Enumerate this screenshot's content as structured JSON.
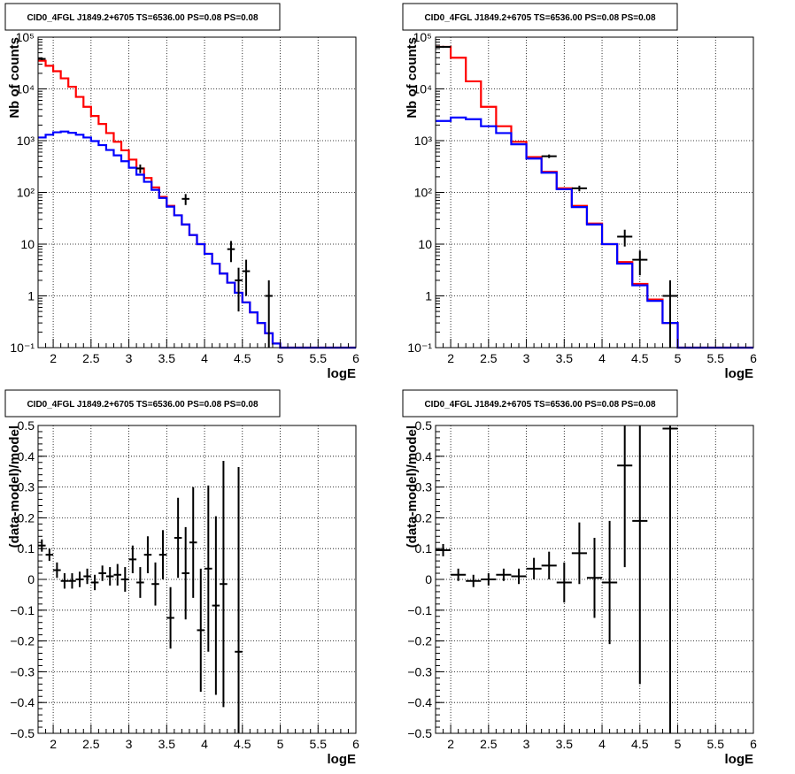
{
  "chart_data": [
    {
      "type": "line",
      "title": "CID0_4FGL J1849.2+6705 TS=6536.00 PS=0.08 PS=0.08",
      "xlabel": "logE",
      "ylabel": "Nb of counts",
      "yscale": "log",
      "xlim": [
        1.8,
        6.0
      ],
      "ylim": [
        0.1,
        100000
      ],
      "grid": true,
      "x_ticks": [
        "2",
        "2.5",
        "3",
        "3.5",
        "4",
        "4.5",
        "5",
        "5.5",
        "6"
      ],
      "y_ticks": [
        "10⁻¹",
        "1",
        "10",
        "10²",
        "10³",
        "10⁴",
        "10⁵"
      ],
      "series": [
        {
          "color": "#ff0000",
          "style": "step",
          "x": [
            1.8,
            1.9,
            2.0,
            2.1,
            2.2,
            2.3,
            2.4,
            2.5,
            2.6,
            2.7,
            2.8,
            2.9,
            3.0,
            3.1,
            3.2,
            3.3,
            3.4,
            3.5,
            3.6,
            3.7,
            3.8,
            3.9,
            4.0,
            4.1,
            4.2,
            4.3,
            4.4,
            4.5,
            4.6,
            4.7,
            4.8,
            4.9,
            5.0,
            6.0
          ],
          "y": [
            35000,
            28000,
            22000,
            16000,
            11000,
            7000,
            4500,
            3000,
            2100,
            1400,
            950,
            650,
            430,
            290,
            190,
            125,
            82,
            55,
            36,
            24,
            15,
            10,
            6.5,
            4.2,
            2.7,
            1.8,
            1.15,
            0.75,
            0.48,
            0.3,
            0.19,
            0.12,
            0.1,
            0.1
          ]
        },
        {
          "color": "#0000ff",
          "style": "step",
          "x": [
            1.8,
            1.9,
            2.0,
            2.1,
            2.2,
            2.3,
            2.4,
            2.5,
            2.6,
            2.7,
            2.8,
            2.9,
            3.0,
            3.1,
            3.2,
            3.3,
            3.4,
            3.5,
            3.6,
            3.7,
            3.8,
            3.9,
            4.0,
            4.1,
            4.2,
            4.3,
            4.4,
            4.5,
            4.6,
            4.7,
            4.8,
            4.9,
            5.0,
            6.0
          ],
          "y": [
            1150,
            1300,
            1450,
            1500,
            1420,
            1300,
            1150,
            980,
            820,
            660,
            520,
            400,
            300,
            220,
            160,
            112,
            78,
            53,
            36,
            24,
            15,
            10,
            6.5,
            4.2,
            2.7,
            1.8,
            1.15,
            0.75,
            0.48,
            0.3,
            0.19,
            0.12,
            0.1,
            0.1
          ]
        },
        {
          "color": "#000000",
          "style": "errorbar",
          "points": [
            [
              1.85,
              38000,
              0.05,
              2000
            ],
            [
              3.15,
              290,
              0.05,
              55
            ],
            [
              3.75,
              75,
              0.05,
              18
            ],
            [
              4.35,
              8,
              0.05,
              3.5
            ],
            [
              4.45,
              2,
              0.05,
              1.5
            ],
            [
              4.55,
              3,
              0.05,
              2
            ],
            [
              4.85,
              1,
              0.05,
              1
            ]
          ]
        }
      ]
    },
    {
      "type": "line",
      "title": "CID0_4FGL J1849.2+6705 TS=6536.00 PS=0.08 PS=0.08",
      "xlabel": "logE",
      "ylabel": "Nb of counts",
      "yscale": "log",
      "xlim": [
        1.8,
        6.0
      ],
      "ylim": [
        0.1,
        100000
      ],
      "grid": true,
      "x_ticks": [
        "2",
        "2.5",
        "3",
        "3.5",
        "4",
        "4.5",
        "5",
        "5.5",
        "6"
      ],
      "y_ticks": [
        "10⁻¹",
        "1",
        "10",
        "10²",
        "10³",
        "10⁴",
        "10⁵"
      ],
      "series": [
        {
          "color": "#ff0000",
          "style": "step",
          "x": [
            1.8,
            2.0,
            2.2,
            2.4,
            2.6,
            2.8,
            3.0,
            3.2,
            3.4,
            3.6,
            3.8,
            4.0,
            4.2,
            4.4,
            4.6,
            4.8,
            5.0,
            6.0
          ],
          "y": [
            65000,
            40000,
            14000,
            4500,
            1900,
            950,
            480,
            250,
            120,
            55,
            25,
            10,
            4.5,
            1.7,
            0.85,
            0.3,
            0.1,
            0.1
          ]
        },
        {
          "color": "#0000ff",
          "style": "step",
          "x": [
            1.8,
            2.0,
            2.2,
            2.4,
            2.6,
            2.8,
            3.0,
            3.2,
            3.4,
            3.6,
            3.8,
            4.0,
            4.2,
            4.4,
            4.6,
            4.8,
            5.0,
            6.0
          ],
          "y": [
            2400,
            2800,
            2600,
            1900,
            1400,
            850,
            450,
            240,
            115,
            52,
            24,
            10,
            4.2,
            1.6,
            0.8,
            0.3,
            0.1,
            0.1
          ]
        },
        {
          "color": "#000000",
          "style": "errorbar",
          "points": [
            [
              1.9,
              65000,
              0.1,
              3000
            ],
            [
              3.3,
              500,
              0.1,
              40
            ],
            [
              3.7,
              120,
              0.1,
              15
            ],
            [
              4.3,
              14,
              0.1,
              5
            ],
            [
              4.5,
              5,
              0.1,
              2.5
            ],
            [
              4.9,
              1,
              0.1,
              1
            ]
          ]
        }
      ]
    },
    {
      "type": "scatter",
      "title": "CID0_4FGL J1849.2+6705 TS=6536.00 PS=0.08 PS=0.08",
      "xlabel": "logE",
      "ylabel": "(data-model)/model",
      "yscale": "linear",
      "xlim": [
        1.8,
        6.0
      ],
      "ylim": [
        -0.5,
        0.5
      ],
      "grid": true,
      "x_ticks": [
        "2",
        "2.5",
        "3",
        "3.5",
        "4",
        "4.5",
        "5",
        "5.5",
        "6"
      ],
      "y_ticks": [
        "−0.5",
        "−0.4",
        "−0.3",
        "−0.2",
        "−0.1",
        "0",
        "0.1",
        "0.2",
        "0.3",
        "0.4",
        "0.5"
      ],
      "series": [
        {
          "color": "#000000",
          "style": "errorbar",
          "points": [
            [
              1.85,
              0.11,
              0.05,
              0.02
            ],
            [
              1.95,
              0.08,
              0.05,
              0.02
            ],
            [
              2.05,
              0.03,
              0.05,
              0.025
            ],
            [
              2.15,
              -0.005,
              0.05,
              0.025
            ],
            [
              2.25,
              -0.005,
              0.05,
              0.025
            ],
            [
              2.35,
              0.0,
              0.05,
              0.025
            ],
            [
              2.45,
              0.01,
              0.05,
              0.025
            ],
            [
              2.55,
              -0.01,
              0.05,
              0.025
            ],
            [
              2.65,
              0.02,
              0.05,
              0.025
            ],
            [
              2.75,
              0.01,
              0.05,
              0.03
            ],
            [
              2.85,
              0.015,
              0.05,
              0.035
            ],
            [
              2.95,
              0.0,
              0.05,
              0.04
            ],
            [
              3.05,
              0.065,
              0.05,
              0.045
            ],
            [
              3.15,
              -0.01,
              0.05,
              0.05
            ],
            [
              3.25,
              0.08,
              0.05,
              0.06
            ],
            [
              3.35,
              -0.015,
              0.05,
              0.07
            ],
            [
              3.45,
              0.08,
              0.05,
              0.08
            ],
            [
              3.55,
              -0.125,
              0.05,
              0.1
            ],
            [
              3.65,
              0.135,
              0.05,
              0.13
            ],
            [
              3.75,
              0.02,
              0.05,
              0.15
            ],
            [
              3.85,
              0.12,
              0.05,
              0.18
            ],
            [
              3.95,
              -0.165,
              0.05,
              0.2
            ],
            [
              4.05,
              0.035,
              0.05,
              0.27
            ],
            [
              4.15,
              -0.085,
              0.05,
              0.29
            ],
            [
              4.25,
              -0.015,
              0.05,
              0.4
            ],
            [
              4.45,
              -0.235,
              0.05,
              0.6
            ]
          ]
        }
      ]
    },
    {
      "type": "scatter",
      "title": "CID0_4FGL J1849.2+6705 TS=6536.00 PS=0.08 PS=0.08",
      "xlabel": "logE",
      "ylabel": "(data-model)/model",
      "yscale": "linear",
      "xlim": [
        1.8,
        6.0
      ],
      "ylim": [
        -0.5,
        0.5
      ],
      "grid": true,
      "x_ticks": [
        "2",
        "2.5",
        "3",
        "3.5",
        "4",
        "4.5",
        "5",
        "5.5",
        "6"
      ],
      "y_ticks": [
        "−0.5",
        "−0.4",
        "−0.3",
        "−0.2",
        "−0.1",
        "0",
        "0.1",
        "0.2",
        "0.3",
        "0.4",
        "0.5"
      ],
      "series": [
        {
          "color": "#000000",
          "style": "errorbar",
          "points": [
            [
              1.9,
              0.095,
              0.1,
              0.02
            ],
            [
              2.1,
              0.015,
              0.1,
              0.02
            ],
            [
              2.3,
              -0.005,
              0.1,
              0.02
            ],
            [
              2.5,
              0.0,
              0.1,
              0.02
            ],
            [
              2.7,
              0.015,
              0.1,
              0.02
            ],
            [
              2.9,
              0.01,
              0.1,
              0.025
            ],
            [
              3.1,
              0.035,
              0.1,
              0.035
            ],
            [
              3.3,
              0.045,
              0.1,
              0.045
            ],
            [
              3.5,
              -0.01,
              0.1,
              0.065
            ],
            [
              3.7,
              0.085,
              0.1,
              0.1
            ],
            [
              3.9,
              0.005,
              0.1,
              0.13
            ],
            [
              4.1,
              -0.01,
              0.1,
              0.2
            ],
            [
              4.3,
              0.37,
              0.1,
              0.33
            ],
            [
              4.5,
              0.19,
              0.1,
              0.53
            ],
            [
              4.9,
              0.49,
              0.1,
              1.1
            ]
          ]
        }
      ]
    }
  ]
}
